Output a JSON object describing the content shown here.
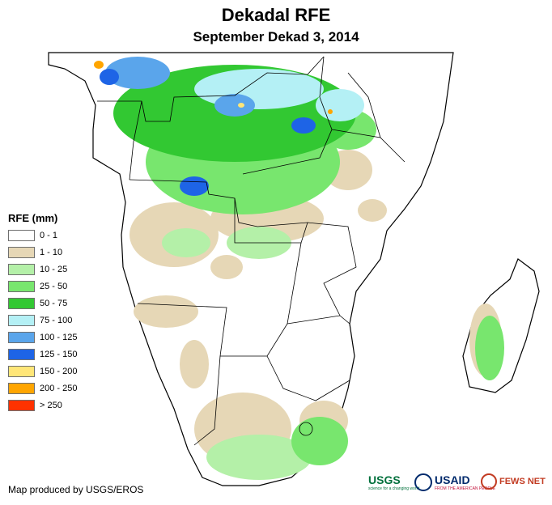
{
  "title": "Dekadal RFE",
  "subtitle": "September Dekad 3, 2014",
  "legend": {
    "title": "RFE (mm)",
    "items": [
      {
        "label": "0 - 1",
        "color": "#ffffff"
      },
      {
        "label": "1 - 10",
        "color": "#e6d7b6"
      },
      {
        "label": "10 - 25",
        "color": "#b4f0a8"
      },
      {
        "label": "25 - 50",
        "color": "#78e66e"
      },
      {
        "label": "50 - 75",
        "color": "#32c832"
      },
      {
        "label": "75 - 100",
        "color": "#b4f0f5"
      },
      {
        "label": "100 - 125",
        "color": "#5aa5eb"
      },
      {
        "label": "125 - 150",
        "color": "#1e64e6"
      },
      {
        "label": "150 - 200",
        "color": "#ffe678"
      },
      {
        "label": "200 - 250",
        "color": "#ffa500"
      },
      {
        "label": "> 250",
        "color": "#ff3200"
      }
    ]
  },
  "credit": "Map produced by USGS/EROS",
  "logos": {
    "usgs": "USGS",
    "usgs_tagline": "science for a changing world",
    "usaid": "USAID",
    "usaid_tagline": "FROM THE AMERICAN PEOPLE",
    "fewsnet": "FEWS NET"
  }
}
